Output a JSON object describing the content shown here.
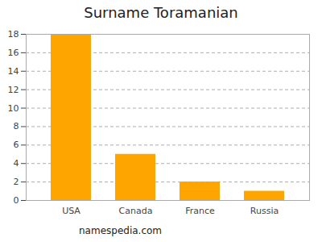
{
  "chart_data": {
    "type": "bar",
    "title": "Surname Toramanian",
    "caption": "namespedia.com",
    "categories": [
      "USA",
      "Canada",
      "France",
      "Russia"
    ],
    "values": [
      18,
      5,
      2,
      1
    ],
    "color": "#ffa500",
    "ylim": [
      0,
      18
    ],
    "yticks": [
      0,
      2,
      4,
      6,
      8,
      10,
      12,
      14,
      16,
      18
    ],
    "grid": true
  }
}
